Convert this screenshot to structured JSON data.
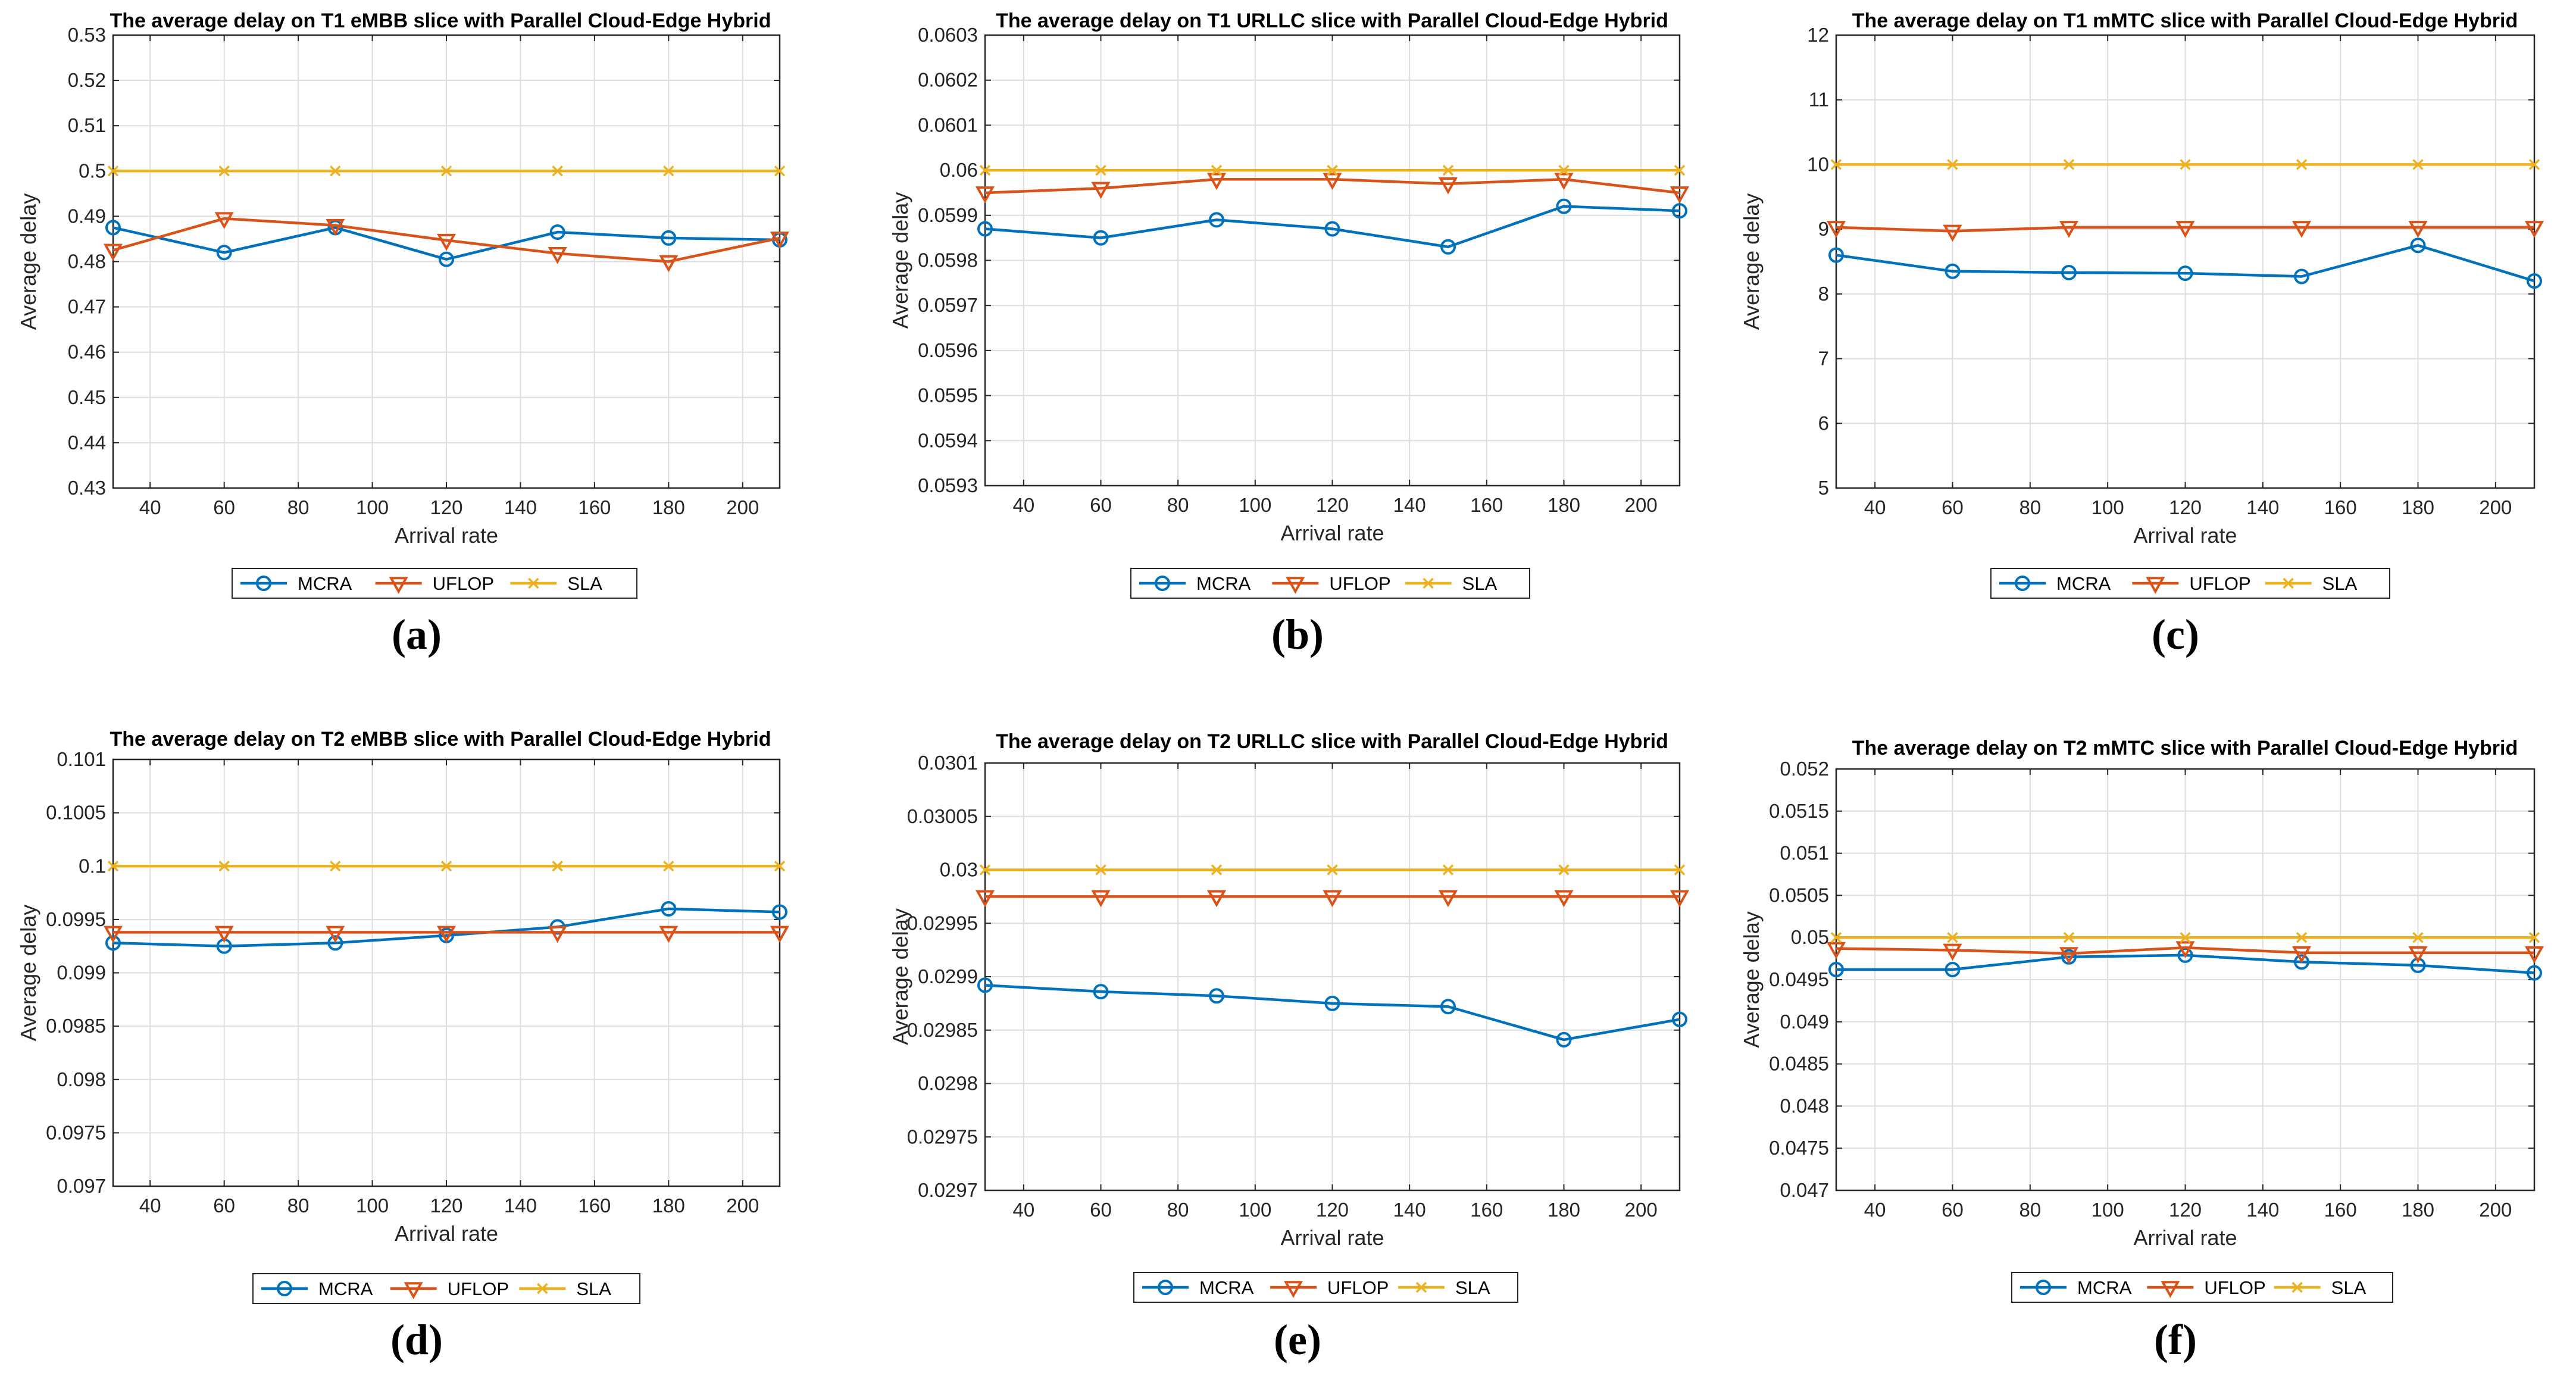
{
  "colors": {
    "mcra": "#0072BD",
    "uflop": "#D95319",
    "sla": "#EDB120",
    "grid": "#dedede",
    "axis": "#262626"
  },
  "chart_data": [
    {
      "type": "line",
      "panel_label": "(a)",
      "title": "The average delay on T1 eMBB slice with Parallel Cloud-Edge Hybrid",
      "xlabel": "Arrival rate",
      "ylabel": "Average delay",
      "xlim": [
        30,
        210
      ],
      "xticks": [
        "40",
        "60",
        "80",
        "100",
        "120",
        "140",
        "160",
        "180",
        "200"
      ],
      "ylim": [
        0.43,
        0.53
      ],
      "yticks": [
        "0.43",
        "0.44",
        "0.45",
        "0.46",
        "0.47",
        "0.48",
        "0.49",
        "0.5",
        "0.51",
        "0.52",
        "0.53"
      ],
      "grid": true,
      "legend": "bottom-center",
      "x": [
        30,
        60,
        90,
        120,
        150,
        180,
        210
      ],
      "series": [
        {
          "name": "MCRA",
          "marker": "circle",
          "values": [
            0.4875,
            0.482,
            0.4875,
            0.4805,
            0.4865,
            0.4852,
            0.4848
          ]
        },
        {
          "name": "UFLOP",
          "marker": "triangle-down",
          "values": [
            0.4825,
            0.4895,
            0.488,
            0.4847,
            0.4818,
            0.48,
            0.4852
          ]
        },
        {
          "name": "SLA",
          "marker": "x",
          "values": [
            0.5,
            0.5,
            0.5,
            0.5,
            0.5,
            0.5,
            0.5
          ]
        }
      ]
    },
    {
      "type": "line",
      "panel_label": "(b)",
      "title": "The average delay on T1 URLLC slice with Parallel Cloud-Edge Hybrid",
      "xlabel": "Arrival rate",
      "ylabel": "Average delay",
      "xlim": [
        30,
        210
      ],
      "xticks": [
        "40",
        "60",
        "80",
        "100",
        "120",
        "140",
        "160",
        "180",
        "200"
      ],
      "ylim": [
        0.0593,
        0.0603
      ],
      "yticks": [
        "0.0593",
        "0.0594",
        "0.0595",
        "0.0596",
        "0.0597",
        "0.0598",
        "0.0599",
        "0.06",
        "0.0601",
        "0.0602",
        "0.0603"
      ],
      "grid": true,
      "legend": "bottom-center",
      "x": [
        30,
        60,
        90,
        120,
        150,
        180,
        210
      ],
      "series": [
        {
          "name": "MCRA",
          "marker": "circle",
          "values": [
            0.05987,
            0.05985,
            0.05989,
            0.05987,
            0.05983,
            0.05992,
            0.05991
          ]
        },
        {
          "name": "UFLOP",
          "marker": "triangle-down",
          "values": [
            0.05995,
            0.05996,
            0.05998,
            0.05998,
            0.05997,
            0.05998,
            0.05995
          ]
        },
        {
          "name": "SLA",
          "marker": "x",
          "values": [
            0.06,
            0.06,
            0.06,
            0.06,
            0.06,
            0.06,
            0.06
          ]
        }
      ]
    },
    {
      "type": "line",
      "panel_label": "(c)",
      "title": "The average delay on T1 mMTC slice with Parallel Cloud-Edge Hybrid",
      "xlabel": "Arrival rate",
      "ylabel": "Average delay",
      "xlim": [
        30,
        210
      ],
      "xticks": [
        "40",
        "60",
        "80",
        "100",
        "120",
        "140",
        "160",
        "180",
        "200"
      ],
      "ylim": [
        5,
        12
      ],
      "yticks": [
        "5",
        "6",
        "7",
        "8",
        "9",
        "10",
        "11",
        "12"
      ],
      "grid": true,
      "legend": "bottom-center",
      "x": [
        30,
        60,
        90,
        120,
        150,
        180,
        210
      ],
      "series": [
        {
          "name": "MCRA",
          "marker": "circle",
          "values": [
            8.6,
            8.35,
            8.33,
            8.32,
            8.27,
            8.75,
            8.2
          ]
        },
        {
          "name": "UFLOP",
          "marker": "triangle-down",
          "values": [
            9.03,
            8.97,
            9.03,
            9.03,
            9.03,
            9.03,
            9.03
          ]
        },
        {
          "name": "SLA",
          "marker": "x",
          "values": [
            10,
            10,
            10,
            10,
            10,
            10,
            10
          ]
        }
      ]
    },
    {
      "type": "line",
      "panel_label": "(d)",
      "title": "The average delay on T2 eMBB slice with Parallel Cloud-Edge Hybrid",
      "xlabel": "Arrival rate",
      "ylabel": "Average delay",
      "xlim": [
        30,
        210
      ],
      "xticks": [
        "40",
        "60",
        "80",
        "100",
        "120",
        "140",
        "160",
        "180",
        "200"
      ],
      "ylim": [
        0.097,
        0.101
      ],
      "yticks": [
        "0.097",
        "0.0975",
        "0.098",
        "0.0985",
        "0.099",
        "0.0995",
        "0.1",
        "0.1005",
        "0.101"
      ],
      "grid": true,
      "legend": "bottom-center",
      "x": [
        30,
        60,
        90,
        120,
        150,
        180,
        210
      ],
      "series": [
        {
          "name": "MCRA",
          "marker": "circle",
          "values": [
            0.09928,
            0.09925,
            0.09928,
            0.09935,
            0.09943,
            0.0996,
            0.09957
          ]
        },
        {
          "name": "UFLOP",
          "marker": "triangle-down",
          "values": [
            0.09938,
            0.09938,
            0.09938,
            0.09938,
            0.09938,
            0.09938,
            0.09938
          ]
        },
        {
          "name": "SLA",
          "marker": "x",
          "values": [
            0.1,
            0.1,
            0.1,
            0.1,
            0.1,
            0.1,
            0.1
          ]
        }
      ]
    },
    {
      "type": "line",
      "panel_label": "(e)",
      "title": "The average delay on T2 URLLC slice with Parallel Cloud-Edge Hybrid",
      "xlabel": "Arrival rate",
      "ylabel": "Average delay",
      "xlim": [
        30,
        210
      ],
      "xticks": [
        "40",
        "60",
        "80",
        "100",
        "120",
        "140",
        "160",
        "180",
        "200"
      ],
      "ylim": [
        0.0297,
        0.0301
      ],
      "yticks": [
        "0.0297",
        "0.02975",
        "0.0298",
        "0.02985",
        "0.0299",
        "0.02995",
        "0.03",
        "0.03005",
        "0.0301"
      ],
      "grid": true,
      "legend": "bottom-center",
      "x": [
        30,
        60,
        90,
        120,
        150,
        180,
        210
      ],
      "series": [
        {
          "name": "MCRA",
          "marker": "circle",
          "values": [
            0.029892,
            0.029886,
            0.029882,
            0.029875,
            0.029872,
            0.029841,
            0.02986
          ]
        },
        {
          "name": "UFLOP",
          "marker": "triangle-down",
          "values": [
            0.029975,
            0.029975,
            0.029975,
            0.029975,
            0.029975,
            0.029975,
            0.029975
          ]
        },
        {
          "name": "SLA",
          "marker": "x",
          "values": [
            0.03,
            0.03,
            0.03,
            0.03,
            0.03,
            0.03,
            0.03
          ]
        }
      ]
    },
    {
      "type": "line",
      "panel_label": "(f)",
      "title": "The average delay on T2 mMTC slice with Parallel Cloud-Edge Hybrid",
      "xlabel": "Arrival rate",
      "ylabel": "Average delay",
      "xlim": [
        30,
        210
      ],
      "xticks": [
        "40",
        "60",
        "80",
        "100",
        "120",
        "140",
        "160",
        "180",
        "200"
      ],
      "ylim": [
        0.047,
        0.052
      ],
      "yticks": [
        "0.047",
        "0.0475",
        "0.048",
        "0.0485",
        "0.049",
        "0.0495",
        "0.05",
        "0.0505",
        "0.051",
        "0.0515",
        "0.052"
      ],
      "grid": true,
      "legend": "bottom-center",
      "x": [
        30,
        60,
        90,
        120,
        150,
        180,
        210
      ],
      "series": [
        {
          "name": "MCRA",
          "marker": "circle",
          "values": [
            0.04962,
            0.04962,
            0.04977,
            0.04979,
            0.04971,
            0.04967,
            0.04958
          ]
        },
        {
          "name": "UFLOP",
          "marker": "triangle-down",
          "values": [
            0.04987,
            0.04985,
            0.04981,
            0.04988,
            0.04982,
            0.04982,
            0.04982
          ]
        },
        {
          "name": "SLA",
          "marker": "x",
          "values": [
            0.05,
            0.05,
            0.05,
            0.05,
            0.05,
            0.05,
            0.05
          ]
        }
      ]
    }
  ]
}
